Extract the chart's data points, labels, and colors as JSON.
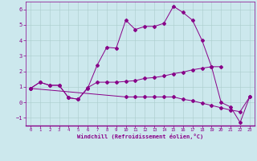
{
  "xlabel": "Windchill (Refroidissement éolien,°C)",
  "background_color": "#cce8ed",
  "line_color": "#880088",
  "grid_color": "#aacccc",
  "xlim": [
    -0.5,
    23.5
  ],
  "ylim": [
    -1.5,
    6.5
  ],
  "xticks": [
    0,
    1,
    2,
    3,
    4,
    5,
    6,
    7,
    8,
    9,
    10,
    11,
    12,
    13,
    14,
    15,
    16,
    17,
    18,
    19,
    20,
    21,
    22,
    23
  ],
  "yticks": [
    -1,
    0,
    1,
    2,
    3,
    4,
    5,
    6
  ],
  "series": [
    {
      "x": [
        0,
        1,
        2,
        3,
        4,
        5,
        6,
        7,
        8,
        9,
        10,
        11,
        12,
        13,
        14,
        15,
        16,
        17,
        18,
        19,
        20
      ],
      "y": [
        0.9,
        1.3,
        1.1,
        1.1,
        0.3,
        0.2,
        0.9,
        2.4,
        3.55,
        3.5,
        5.3,
        4.7,
        4.9,
        4.9,
        5.1,
        6.2,
        5.8,
        5.3,
        4.0,
        2.3,
        2.3
      ]
    },
    {
      "x": [
        0,
        1,
        2,
        3,
        4,
        5,
        6,
        7,
        8,
        9,
        10,
        11,
        12,
        13,
        14,
        15,
        16,
        17,
        18,
        19,
        20,
        21,
        22,
        23
      ],
      "y": [
        0.9,
        1.3,
        1.1,
        1.1,
        0.3,
        0.2,
        0.95,
        1.3,
        1.3,
        1.3,
        1.35,
        1.4,
        1.55,
        1.6,
        1.7,
        1.85,
        1.95,
        2.1,
        2.2,
        2.3,
        0.0,
        -0.3,
        -1.3,
        0.35
      ]
    },
    {
      "x": [
        0,
        10,
        11,
        12,
        13,
        14,
        15,
        16,
        17,
        18,
        19,
        20,
        21,
        22,
        23
      ],
      "y": [
        0.9,
        0.35,
        0.35,
        0.35,
        0.35,
        0.35,
        0.35,
        0.2,
        0.1,
        -0.05,
        -0.2,
        -0.35,
        -0.5,
        -0.6,
        0.35
      ]
    }
  ]
}
